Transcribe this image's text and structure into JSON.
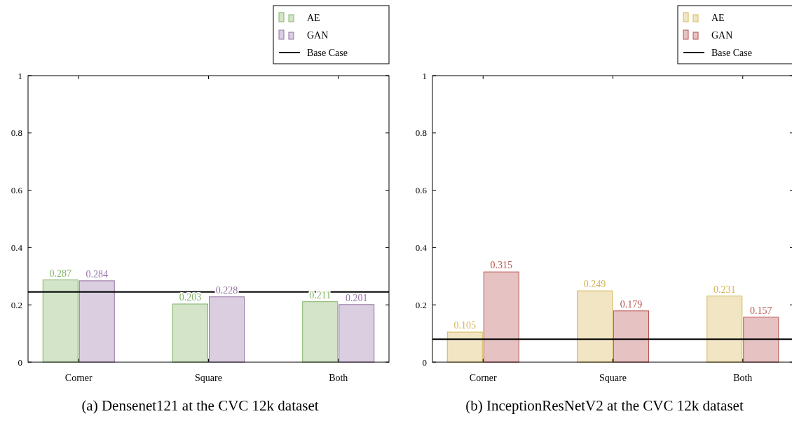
{
  "chart_data": [
    {
      "type": "bar",
      "title": "(a) Densenet121 at the CVC 12k dataset",
      "categories": [
        "Corner",
        "Square",
        "Both"
      ],
      "series": [
        {
          "name": "AE",
          "color": "#82b366",
          "values": [
            0.287,
            0.203,
            0.211
          ]
        },
        {
          "name": "GAN",
          "color": "#9673a6",
          "values": [
            0.284,
            0.228,
            0.201
          ]
        }
      ],
      "ref_lines": [
        {
          "axis": "y",
          "value": 0.245,
          "label": "Base Case",
          "color": "#000000"
        }
      ],
      "ylim": [
        0,
        1
      ],
      "yticks": [
        0,
        0.2,
        0.4,
        0.6,
        0.8,
        1
      ],
      "data_labels": true,
      "legend": "top right",
      "grid": false
    },
    {
      "type": "bar",
      "title": "(b) InceptionResNetV2 at the CVC 12k dataset",
      "categories": [
        "Corner",
        "Square",
        "Both"
      ],
      "series": [
        {
          "name": "AE",
          "color": "#d6b656",
          "values": [
            0.105,
            0.249,
            0.231
          ]
        },
        {
          "name": "GAN",
          "color": "#b85450",
          "values": [
            0.315,
            0.179,
            0.157
          ]
        }
      ],
      "ref_lines": [
        {
          "axis": "y",
          "value": 0.08,
          "label": "Base Case",
          "color": "#000000"
        }
      ],
      "ylim": [
        0,
        1
      ],
      "yticks": [
        0,
        0.2,
        0.4,
        0.6,
        0.8,
        1
      ],
      "data_labels": true,
      "legend": "top right",
      "grid": false
    }
  ]
}
